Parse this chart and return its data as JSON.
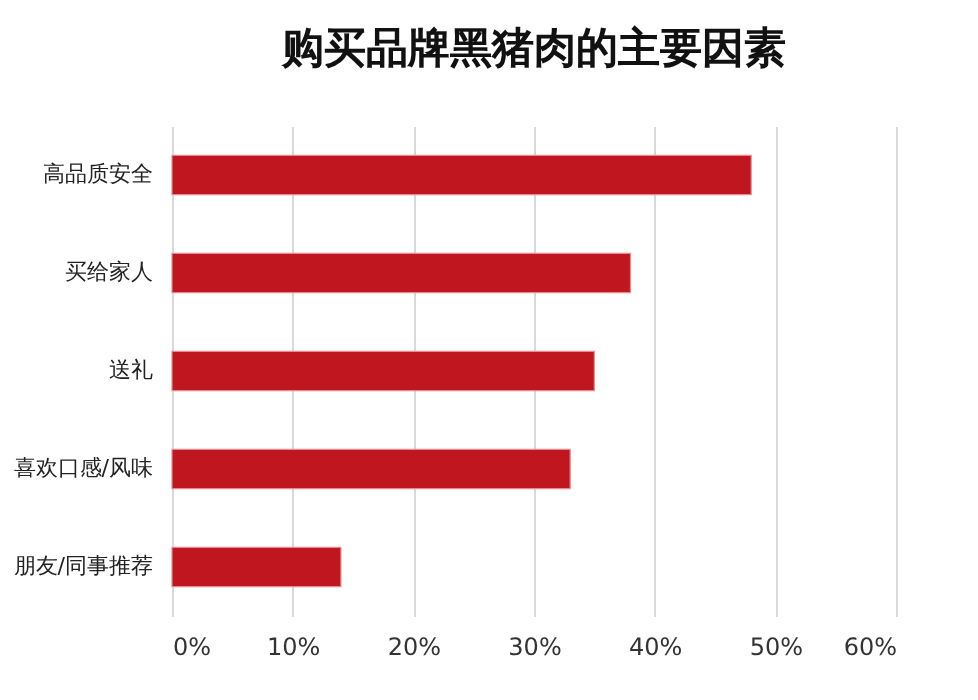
{
  "chart_data": {
    "type": "bar",
    "orientation": "horizontal",
    "title": "购买品牌黑猪肉的主要因素",
    "categories": [
      "高品质安全",
      "买给家人",
      "送礼",
      "喜欢口感/风味",
      "朋友/同事推荐"
    ],
    "values": [
      48,
      38,
      35,
      33,
      14
    ],
    "color": "#c0161f",
    "xlim": [
      0,
      60
    ],
    "xticks": [
      {
        "value": 0,
        "label": "0%"
      },
      {
        "value": 10,
        "label": "10%"
      },
      {
        "value": 20,
        "label": "20%"
      },
      {
        "value": 30,
        "label": "30%"
      },
      {
        "value": 40,
        "label": "40%"
      },
      {
        "value": 50,
        "label": "50%"
      },
      {
        "value": 60,
        "label": "60%"
      }
    ],
    "grid": "x"
  }
}
